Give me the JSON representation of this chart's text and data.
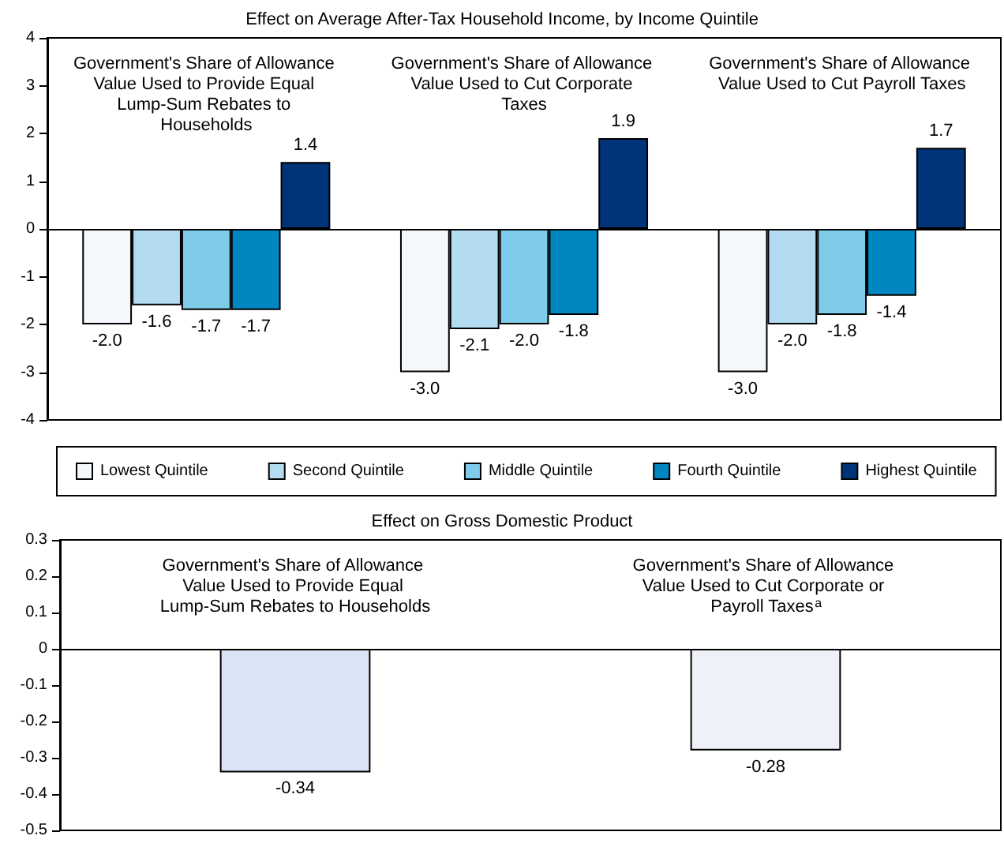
{
  "chart_data": [
    {
      "type": "bar",
      "title": "Effect on Average After-Tax Household Income, by Income Quintile",
      "categories": [
        "Government's Share of Allowance Value Used to Provide Equal Lump-Sum Rebates to Households",
        "Government's Share of Allowance Value Used to Cut Corporate Taxes",
        "Government's Share of Allowance Value Used to Cut Payroll Taxes"
      ],
      "series": [
        {
          "name": "Lowest Quintile",
          "color": "#f4f8fd",
          "values": [
            -2.0,
            -3.0,
            -3.0
          ],
          "value_labels": [
            "-2.0",
            "-3.0",
            "-3.0"
          ]
        },
        {
          "name": "Second Quintile",
          "color": "#b3dcf2",
          "values": [
            -1.6,
            -2.1,
            -2.0
          ],
          "value_labels": [
            "-1.6",
            "-2.1",
            "-2.0"
          ]
        },
        {
          "name": "Middle Quintile",
          "color": "#7ecbea",
          "values": [
            -1.7,
            -2.0,
            -1.8
          ],
          "value_labels": [
            "-1.7",
            "-2.0",
            "-1.8"
          ]
        },
        {
          "name": "Fourth Quintile",
          "color": "#0086c0",
          "values": [
            -1.7,
            -1.8,
            -1.4
          ],
          "value_labels": [
            "-1.7",
            "-1.8",
            "-1.4"
          ]
        },
        {
          "name": "Highest Quintile",
          "color": "#003478",
          "values": [
            1.4,
            1.9,
            1.7
          ],
          "value_labels": [
            "1.4",
            "1.9",
            "1.7"
          ]
        }
      ],
      "ylim": [
        -4,
        4
      ],
      "yticks": [
        -4,
        -3,
        -2,
        -1,
        0,
        1,
        2,
        3,
        4
      ],
      "legend": "bottom"
    },
    {
      "type": "bar",
      "title": "Effect on Gross Domestic Product",
      "categories": [
        "Government's Share of Allowance Value Used to Provide Equal Lump-Sum Rebates to Households",
        "Government's Share of Allowance Value Used to Cut Corporate or Payroll Taxes$^{a}$"
      ],
      "values": [
        -0.34,
        -0.28
      ],
      "colors": [
        "#dbe4f4",
        "#eef1f8"
      ],
      "value_labels": [
        "-0.34",
        "-0.28"
      ],
      "ylim": [
        -0.5,
        0.3
      ],
      "yticks": [
        -0.5,
        -0.4,
        -0.3,
        -0.2,
        -0.1,
        0,
        0.1,
        0.2,
        0.3
      ],
      "legend": false
    }
  ]
}
